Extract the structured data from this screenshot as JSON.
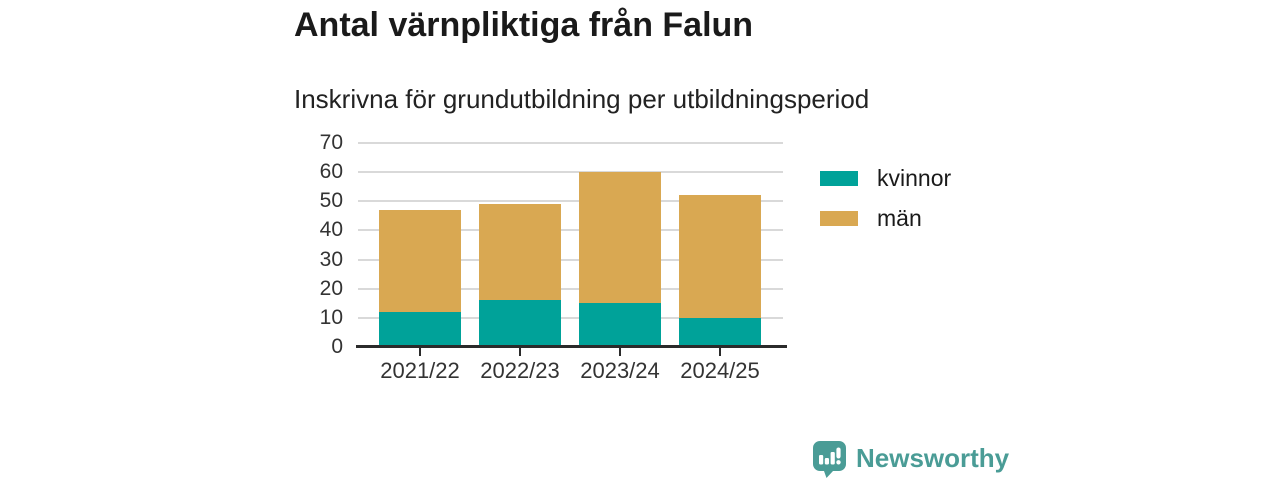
{
  "page": {
    "title": "Antal värnpliktiga från Falun",
    "subtitle": "Inskrivna för grundutbildning per utbildningsperiod"
  },
  "chart_data": {
    "type": "bar",
    "stacked": true,
    "title": "Antal värnpliktiga från Falun",
    "subtitle": "Inskrivna för grundutbildning per utbildningsperiod",
    "categories": [
      "2021/22",
      "2022/23",
      "2023/24",
      "2024/25"
    ],
    "series": [
      {
        "name": "kvinnor",
        "color": "#00a299",
        "values": [
          12,
          16,
          15,
          10
        ]
      },
      {
        "name": "män",
        "color": "#d9a852",
        "values": [
          35,
          33,
          45,
          42
        ]
      }
    ],
    "stack_totals": [
      47,
      49,
      60,
      52
    ],
    "xlabel": "",
    "ylabel": "",
    "ylim": [
      0,
      70
    ],
    "yticks": [
      0,
      10,
      20,
      30,
      40,
      50,
      60,
      70
    ],
    "grid": true,
    "legend_position": "right"
  },
  "colors": {
    "kvinnor": "#00a299",
    "man": "#d9a852",
    "grid": "#d9d9d9",
    "axis": "#2b2b2b",
    "text": "#1a1a1a",
    "tick_text": "#333333",
    "brand": "#4a9c96"
  },
  "footer": {
    "brand": "Newsworthy"
  }
}
